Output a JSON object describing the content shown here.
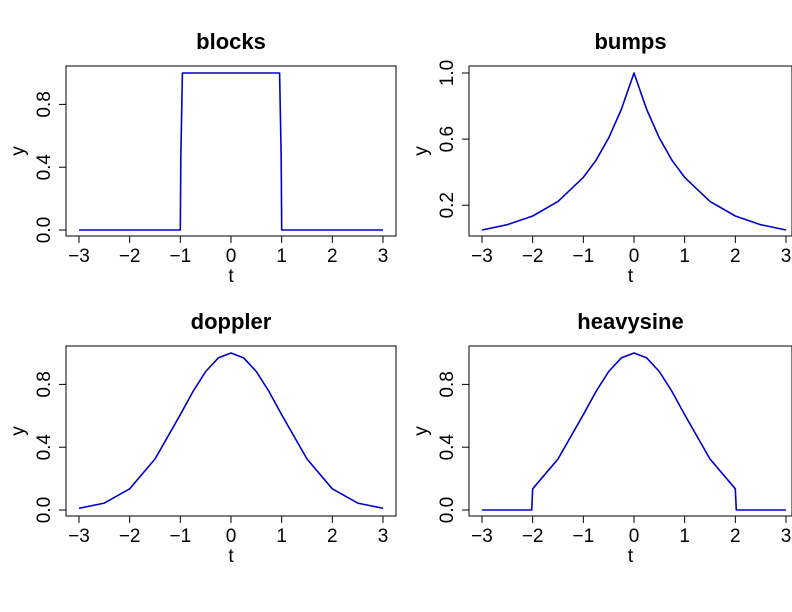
{
  "chart_data": [
    {
      "type": "line",
      "title": "blocks",
      "xlabel": "t",
      "ylabel": "y",
      "xlim": [
        -3,
        3
      ],
      "ylim": [
        0,
        1
      ],
      "xticks": [
        "−3",
        "−2",
        "−1",
        "0",
        "1",
        "2",
        "3"
      ],
      "yticks": [
        "0.0",
        "0.4",
        "0.8"
      ],
      "ytick_values": [
        0,
        0.4,
        0.8
      ],
      "line_color": "#0000cc",
      "series": [
        {
          "x": [
            -3,
            -1.0,
            -0.99,
            -0.96,
            0.96,
            0.99,
            1.0,
            3
          ],
          "values": [
            0,
            0,
            0.45,
            1,
            1,
            0.45,
            0,
            0
          ]
        }
      ]
    },
    {
      "type": "line",
      "title": "bumps",
      "xlabel": "t",
      "ylabel": "y",
      "xlim": [
        -3,
        3
      ],
      "ylim": [
        0.05,
        1
      ],
      "xticks": [
        "−3",
        "−2",
        "−1",
        "0",
        "1",
        "2",
        "3"
      ],
      "yticks": [
        "0.2",
        "0.6",
        "1.0"
      ],
      "ytick_values": [
        0.2,
        0.6,
        1.0
      ],
      "line_color": "#0000cc",
      "series": [
        {
          "x": [
            -3,
            -2.5,
            -2,
            -1.5,
            -1,
            -0.75,
            -0.5,
            -0.25,
            0,
            0.25,
            0.5,
            0.75,
            1,
            1.5,
            2,
            2.5,
            3
          ],
          "values": [
            0.05,
            0.082,
            0.135,
            0.223,
            0.368,
            0.472,
            0.607,
            0.779,
            1.0,
            0.779,
            0.607,
            0.472,
            0.368,
            0.223,
            0.135,
            0.082,
            0.05
          ]
        }
      ]
    },
    {
      "type": "line",
      "title": "doppler",
      "xlabel": "t",
      "ylabel": "y",
      "xlim": [
        -3,
        3
      ],
      "ylim": [
        0,
        1
      ],
      "xticks": [
        "−3",
        "−2",
        "−1",
        "0",
        "1",
        "2",
        "3"
      ],
      "yticks": [
        "0.0",
        "0.4",
        "0.8"
      ],
      "ytick_values": [
        0,
        0.4,
        0.8
      ],
      "line_color": "#0000cc",
      "series": [
        {
          "x": [
            -3,
            -2.5,
            -2,
            -1.5,
            -1,
            -0.75,
            -0.5,
            -0.25,
            0,
            0.25,
            0.5,
            0.75,
            1,
            1.5,
            2,
            2.5,
            3
          ],
          "values": [
            0.011,
            0.044,
            0.135,
            0.325,
            0.607,
            0.755,
            0.882,
            0.969,
            1.0,
            0.969,
            0.882,
            0.755,
            0.607,
            0.325,
            0.135,
            0.044,
            0.011
          ]
        }
      ]
    },
    {
      "type": "line",
      "title": "heavysine",
      "xlabel": "t",
      "ylabel": "y",
      "xlim": [
        -3,
        3
      ],
      "ylim": [
        0,
        1
      ],
      "xticks": [
        "−3",
        "−2",
        "−1",
        "0",
        "1",
        "2",
        "3"
      ],
      "yticks": [
        "0.0",
        "0.4",
        "0.8"
      ],
      "ytick_values": [
        0,
        0.4,
        0.8
      ],
      "line_color": "#0000cc",
      "series": [
        {
          "x": [
            -3,
            -2.02,
            -2.0,
            -1.5,
            -1,
            -0.75,
            -0.5,
            -0.25,
            0,
            0.25,
            0.5,
            0.75,
            1,
            1.5,
            2.0,
            2.02,
            3
          ],
          "values": [
            0,
            0,
            0.135,
            0.325,
            0.607,
            0.755,
            0.882,
            0.969,
            1.0,
            0.969,
            0.882,
            0.755,
            0.607,
            0.325,
            0.135,
            0,
            0
          ]
        }
      ]
    }
  ]
}
